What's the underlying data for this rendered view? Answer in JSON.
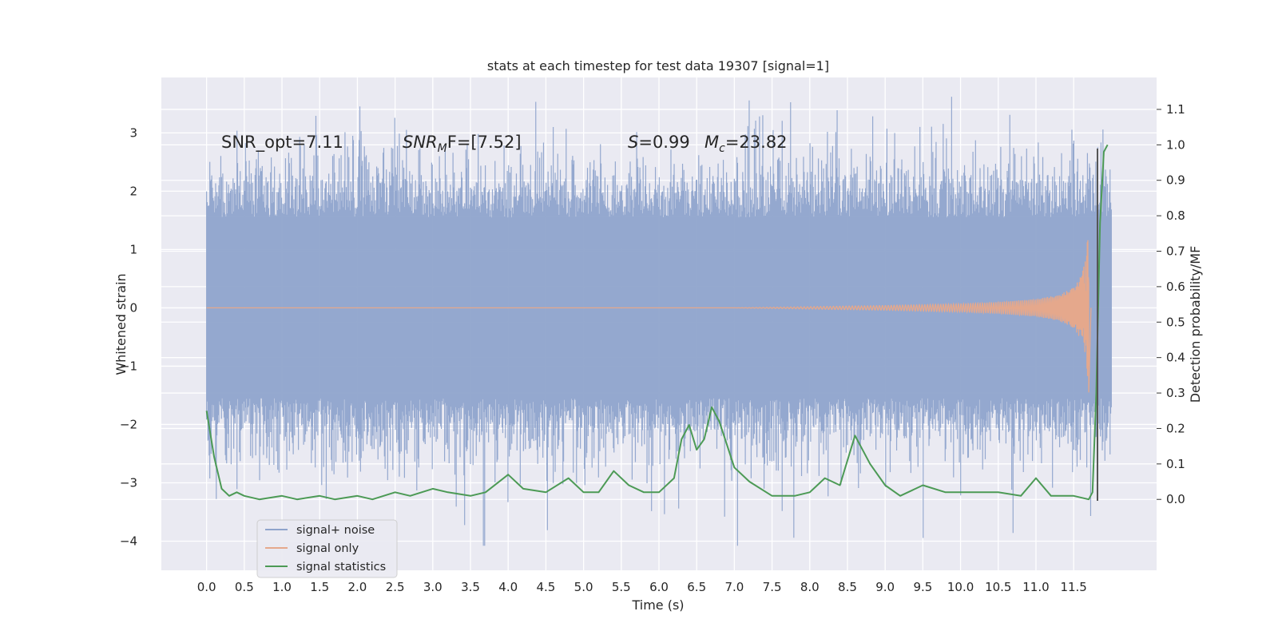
{
  "chart_data": {
    "type": "line",
    "title": "stats at each timestep for test data 19307 [signal=1]",
    "xlabel": "Time (s)",
    "ylabel_left": "Whitened strain",
    "ylabel_right": "Detection probability/MF",
    "xlim": [
      -0.6,
      12.6
    ],
    "ylim_left": [
      -4.5,
      3.95
    ],
    "ylim_right": [
      -0.2,
      1.19
    ],
    "grid": true,
    "legend_position": "bottom-left",
    "x_ticks": [
      "0.0",
      "0.5",
      "1.0",
      "1.5",
      "2.0",
      "2.5",
      "3.0",
      "3.5",
      "4.0",
      "4.5",
      "5.0",
      "5.5",
      "6.0",
      "6.5",
      "7.0",
      "7.5",
      "8.0",
      "8.5",
      "9.0",
      "9.5",
      "10.0",
      "10.5",
      "11.0",
      "11.5"
    ],
    "y_ticks_left": [
      "3",
      "2",
      "1",
      "0",
      "−1",
      "−2",
      "−3",
      "−4"
    ],
    "y_ticks_right": [
      "1.1",
      "1.0",
      "0.9",
      "0.8",
      "0.7",
      "0.6",
      "0.5",
      "0.4",
      "0.3",
      "0.2",
      "0.1",
      "0.0"
    ],
    "annotations": {
      "snr_opt": "SNR_opt=7.11",
      "snr_mf_main": "SNR",
      "snr_mf_sub": "M",
      "snr_mf_rest": "F=[7.52]",
      "s_main": "S",
      "s_rest": "=0.99",
      "mc_main": "M",
      "mc_sub": "c",
      "mc_rest": "=23.82"
    },
    "series": [
      {
        "name": "signal+ noise",
        "color": "#8fa4cc",
        "x_range": [
          0.0,
          12.0
        ],
        "typical_amplitude": 1.55,
        "max": 3.62,
        "min": -4.08
      },
      {
        "name": "signal only",
        "color": "#e5a88c",
        "x": [
          0.0,
          7.0,
          8.0,
          9.0,
          10.0,
          10.5,
          11.0,
          11.3,
          11.5,
          11.6,
          11.65,
          11.7
        ],
        "envelope": [
          0.0,
          0.0,
          0.02,
          0.04,
          0.07,
          0.1,
          0.15,
          0.22,
          0.35,
          0.55,
          0.8,
          1.4
        ]
      },
      {
        "name": "signal statistics",
        "color": "#4c9a55",
        "axis": "right",
        "x": [
          0.0,
          0.1,
          0.2,
          0.3,
          0.4,
          0.5,
          0.7,
          1.0,
          1.2,
          1.5,
          1.7,
          2.0,
          2.2,
          2.5,
          2.7,
          3.0,
          3.2,
          3.5,
          3.7,
          4.0,
          4.2,
          4.5,
          4.8,
          5.0,
          5.2,
          5.4,
          5.6,
          5.8,
          6.0,
          6.2,
          6.3,
          6.4,
          6.5,
          6.6,
          6.7,
          6.8,
          7.0,
          7.2,
          7.5,
          7.8,
          8.0,
          8.2,
          8.4,
          8.6,
          8.8,
          9.0,
          9.2,
          9.5,
          9.8,
          10.0,
          10.5,
          10.8,
          11.0,
          11.2,
          11.5,
          11.7,
          11.75,
          11.8,
          11.85,
          11.9,
          11.95
        ],
        "values": [
          0.25,
          0.12,
          0.03,
          0.01,
          0.02,
          0.01,
          0.0,
          0.01,
          0.0,
          0.01,
          0.0,
          0.01,
          0.0,
          0.02,
          0.01,
          0.03,
          0.02,
          0.01,
          0.02,
          0.07,
          0.03,
          0.02,
          0.06,
          0.02,
          0.02,
          0.08,
          0.04,
          0.02,
          0.02,
          0.06,
          0.17,
          0.21,
          0.14,
          0.17,
          0.26,
          0.22,
          0.09,
          0.05,
          0.01,
          0.01,
          0.02,
          0.06,
          0.04,
          0.18,
          0.1,
          0.04,
          0.01,
          0.04,
          0.02,
          0.02,
          0.02,
          0.01,
          0.06,
          0.01,
          0.01,
          0.0,
          0.02,
          0.3,
          0.78,
          0.98,
          1.0
        ]
      }
    ]
  }
}
